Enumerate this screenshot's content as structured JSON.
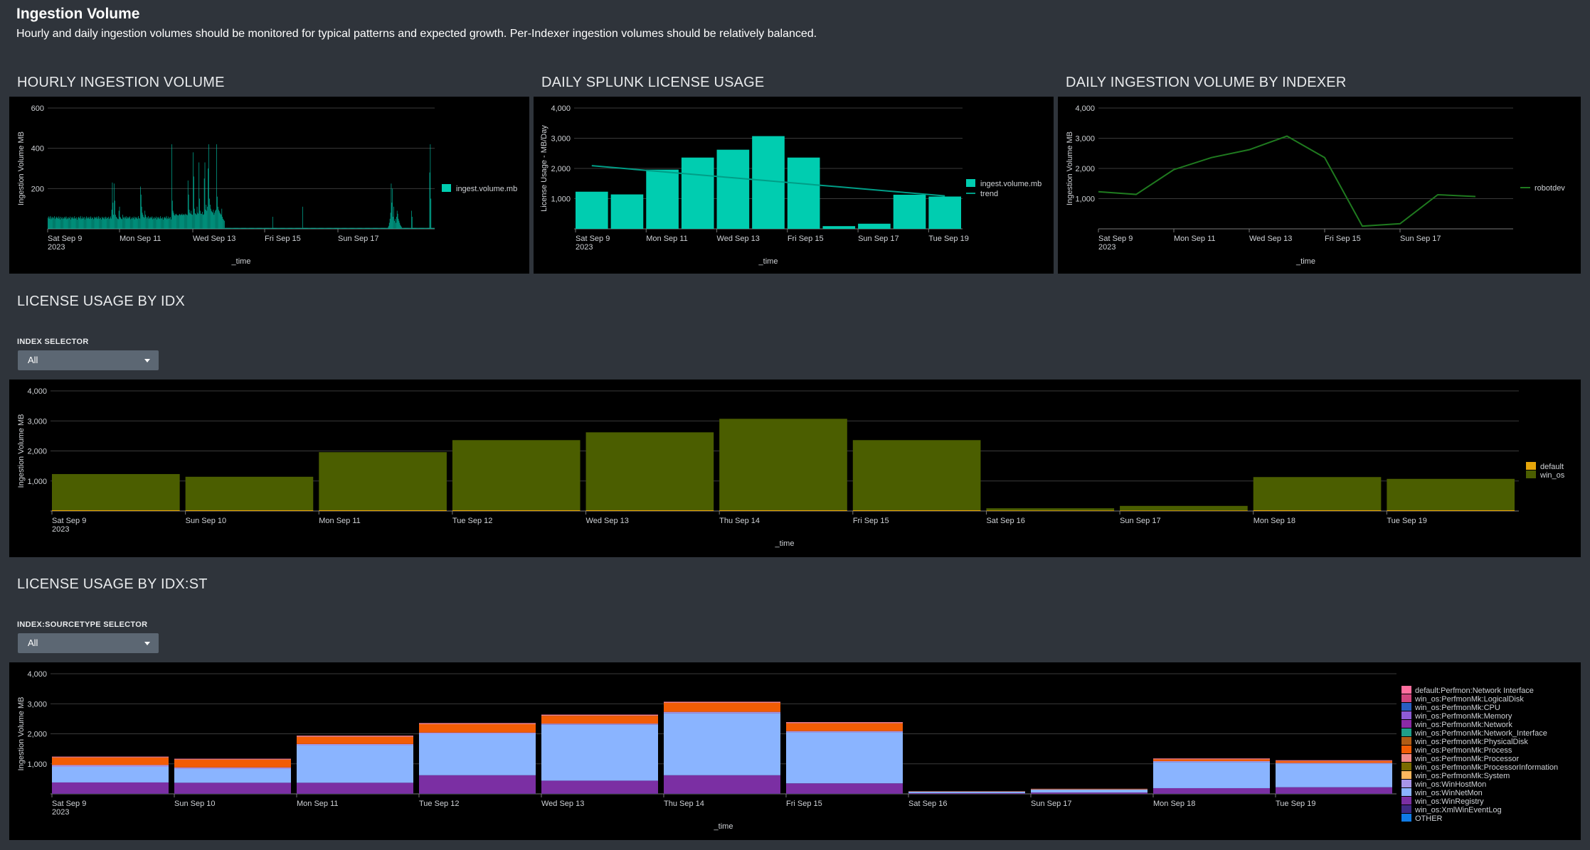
{
  "dashboard": {
    "title": "Ingestion Volume",
    "description": "Hourly and daily ingestion volumes should be monitored for typical patterns and expected growth. Per-Indexer ingestion volumes should be relatively balanced."
  },
  "colors": {
    "teal": "#00cdb0",
    "green_line": "#1f7a1f",
    "olive": "#4b5e00",
    "amber": "#e5a50a",
    "light_blue": "#8ab4ff",
    "purple": "#7b2fa3",
    "orange": "#f25c05"
  },
  "sections": {
    "hourly_title": "HOURLY INGESTION VOLUME",
    "daily_title": "DAILY SPLUNK LICENSE USAGE",
    "indexer_title": "DAILY INGESTION VOLUME BY INDEXER",
    "idx_title": "LICENSE USAGE BY IDX",
    "idxst_title": "LICENSE USAGE BY IDX:ST"
  },
  "inputs": {
    "index_selector": {
      "label": "INDEX SELECTOR",
      "value": "All"
    },
    "sourcetype_selector": {
      "label": "INDEX:SOURCETYPE SELECTOR",
      "value": "All"
    }
  },
  "charts": {
    "hourly": {
      "chart_data": {
        "type": "bar",
        "xlabel": "_time",
        "ylabel": "Ingestion Volume MB",
        "ylim": [
          0,
          600
        ],
        "yticks": [
          "200",
          "400",
          "600"
        ],
        "xticks": [
          "Sat Sep 9",
          "Mon Sep 11",
          "Wed Sep 13",
          "Fri Sep 15",
          "Sun Sep 17"
        ],
        "xtick_sub": "2023",
        "series": [
          {
            "name": "ingest.volume.mb",
            "values": [
              55,
              62,
              50,
              58,
              64,
              48,
              55,
              60,
              52,
              57,
              63,
              49,
              56,
              61,
              53,
              58,
              50,
              62,
              55,
              47,
              60,
              52,
              58,
              49,
              54,
              60,
              51,
              57,
              62,
              48,
              56,
              50,
              58,
              53,
              61,
              47,
              55,
              60,
              52,
              57,
              49,
              63,
              54,
              51,
              58,
              46,
              55,
              60,
              52,
              57,
              64,
              48,
              53,
              61,
              50,
              56,
              59,
              47,
              55,
              62,
              51,
              58,
              53,
              60,
              49,
              56,
              62,
              50,
              57,
              54,
              48,
              60,
              52,
              58,
              55,
              61,
              49,
              56,
              63,
              50,
              58,
              53,
              47,
              60,
              55,
              52,
              59,
              48,
              56,
              61,
              50,
              57,
              53,
              60,
              49,
              55,
              62,
              51,
              95,
              230,
              130,
              70,
              225,
              140,
              70,
              60,
              55,
              50,
              48,
              90,
              110,
              60,
              55,
              50,
              48,
              70,
              55,
              60,
              52,
              58,
              63,
              50,
              55,
              60,
              52,
              57,
              62,
              48,
              56,
              50,
              58,
              53,
              61,
              47,
              55,
              60,
              52,
              57,
              49,
              63,
              54,
              51,
              210,
              170,
              110,
              80,
              70,
              60,
              55,
              90,
              70,
              60,
              52,
              58,
              63,
              50,
              55,
              60,
              52,
              57,
              62,
              48,
              56,
              50,
              58,
              53,
              61,
              47,
              55,
              60,
              52,
              57,
              49,
              63,
              54,
              51,
              58,
              46,
              55,
              60,
              52,
              57,
              64,
              48,
              53,
              61,
              50,
              56,
              59,
              47,
              420,
              140,
              90,
              80,
              70,
              65,
              72,
              75,
              70,
              68,
              66,
              70,
              74,
              68,
              72,
              70,
              76,
              68,
              71,
              73,
              69,
              75,
              70,
              72,
              68,
              240,
              170,
              95,
              80,
              75,
              90,
              72,
              70,
              380,
              260,
              100,
              78,
              74,
              70,
              110,
              80,
              75,
              330,
              150,
              90,
              75,
              75,
              85,
              70,
              72,
              250,
              330,
              95,
              120,
              90,
              110,
              300,
              420,
              150,
              120,
              100,
              90,
              85,
              80,
              95,
              70,
              80,
              90,
              95,
              420,
              160,
              110,
              95,
              88,
              80,
              75,
              70,
              100,
              60,
              50,
              45,
              40,
              5,
              5,
              5,
              5,
              5,
              5,
              5,
              5,
              5,
              5,
              5,
              5,
              5,
              5,
              5,
              5,
              5,
              5,
              5,
              5,
              5,
              5,
              5,
              5,
              5,
              5,
              5,
              5,
              5,
              5,
              5,
              5,
              5,
              5,
              5,
              5,
              5,
              5,
              5,
              5,
              5,
              5,
              5,
              5,
              5,
              5,
              5,
              5,
              5,
              5,
              5,
              5,
              5,
              5,
              5,
              5,
              5,
              5,
              5,
              5,
              5,
              5,
              5,
              5,
              5,
              5,
              5,
              5,
              5,
              5,
              5,
              5,
              5,
              60,
              5,
              5,
              5,
              5,
              5,
              5,
              5,
              5,
              5,
              5,
              5,
              5,
              5,
              5,
              5,
              5,
              5,
              5,
              5,
              5,
              5,
              5,
              5,
              5,
              5,
              5,
              5,
              5,
              5,
              5,
              5,
              5,
              5,
              5,
              5,
              5,
              5,
              5,
              5,
              5,
              5,
              5,
              5,
              5,
              5,
              110,
              5,
              5,
              5,
              5,
              5,
              5,
              5,
              5,
              5,
              5,
              5,
              5,
              5,
              5,
              5,
              5,
              5,
              5,
              5,
              5,
              5,
              5,
              5,
              5,
              5,
              5,
              5,
              5,
              5,
              5,
              5,
              5,
              5,
              5,
              5,
              5,
              5,
              5,
              5,
              5,
              5,
              5,
              5,
              5,
              5,
              5,
              5,
              5,
              5,
              5,
              5,
              5,
              5,
              5,
              5,
              5,
              5,
              5,
              5,
              5,
              5,
              5,
              5,
              5,
              5,
              5,
              5,
              5,
              5,
              5,
              5,
              5,
              5,
              5,
              5,
              5,
              5,
              5,
              5,
              5,
              5,
              5,
              5,
              5,
              5,
              5,
              5,
              5,
              5,
              5,
              5,
              5,
              5,
              5,
              5,
              5,
              5,
              5,
              5,
              5,
              5,
              5,
              5,
              5,
              5,
              5,
              5,
              5,
              5,
              5,
              5,
              5,
              5,
              5,
              5,
              5,
              5,
              5,
              5,
              5,
              5,
              5,
              5,
              5,
              5,
              5,
              5,
              5,
              5,
              5,
              8,
              15,
              30,
              50,
              80,
              225,
              130,
              200,
              60,
              110,
              40,
              50,
              30,
              60,
              90,
              75,
              50,
              40,
              30,
              20,
              15,
              10,
              5,
              5,
              5,
              5,
              5,
              5,
              5,
              5,
              5,
              5,
              5,
              5,
              5,
              5,
              90,
              60,
              5,
              5,
              5,
              5,
              5,
              5,
              5,
              5,
              5,
              5,
              5,
              5,
              5,
              5,
              5,
              5,
              5,
              5,
              5,
              5,
              5,
              5,
              5,
              5,
              5,
              5,
              280,
              420,
              150,
              5,
              5,
              5,
              5,
              5
            ]
          }
        ],
        "legend": "right"
      }
    },
    "daily": {
      "chart_data": {
        "type": "bar",
        "xlabel": "_time",
        "ylabel": "License Usage - MB/Day",
        "ylim": [
          0,
          4000
        ],
        "yticks": [
          "1,000",
          "2,000",
          "3,000",
          "4,000"
        ],
        "categories": [
          "Sat Sep 9",
          "Sun Sep 10",
          "Mon Sep 11",
          "Tue Sep 12",
          "Wed Sep 13",
          "Thu Sep 14",
          "Fri Sep 15",
          "Sat Sep 16",
          "Sun Sep 17",
          "Mon Sep 18",
          "Tue Sep 19"
        ],
        "xticks": [
          "Sat Sep 9",
          "Mon Sep 11",
          "Wed Sep 13",
          "Fri Sep 15",
          "Sun Sep 17",
          "Tue Sep 19"
        ],
        "xtick_sub": "2023",
        "series": [
          {
            "name": "ingest.volume.mb",
            "type": "bar",
            "values": [
              1230,
              1140,
              1960,
              2360,
              2620,
              3070,
              2360,
              90,
              170,
              1130,
              1070
            ]
          },
          {
            "name": "trend",
            "type": "line",
            "values": [
              2090,
              1990,
              1890,
              1790,
              1690,
              1590,
              1490,
              1390,
              1290,
              1190,
              1090
            ]
          }
        ],
        "legend": "right"
      }
    },
    "indexer": {
      "chart_data": {
        "type": "line",
        "xlabel": "_time",
        "ylabel": "Ingestion Volume MB",
        "ylim": [
          0,
          4000
        ],
        "yticks": [
          "1,000",
          "2,000",
          "3,000",
          "4,000"
        ],
        "categories": [
          "Sat Sep 9",
          "Sun Sep 10",
          "Mon Sep 11",
          "Tue Sep 12",
          "Wed Sep 13",
          "Thu Sep 14",
          "Fri Sep 15",
          "Sat Sep 16",
          "Sun Sep 17",
          "Mon Sep 18",
          "Tue Sep 19"
        ],
        "xticks": [
          "Sat Sep 9",
          "Mon Sep 11",
          "Wed Sep 13",
          "Fri Sep 15",
          "Sun Sep 17"
        ],
        "xtick_sub": "2023",
        "series": [
          {
            "name": "robotdev",
            "values": [
              1230,
              1140,
              1960,
              2360,
              2620,
              3070,
              2360,
              90,
              170,
              1130,
              1070
            ]
          }
        ],
        "legend": "right"
      }
    },
    "idx": {
      "chart_data": {
        "type": "bar",
        "stacked": true,
        "xlabel": "_time",
        "ylabel": "Ingestion Volume MB",
        "ylim": [
          0,
          4000
        ],
        "yticks": [
          "1,000",
          "2,000",
          "3,000",
          "4,000"
        ],
        "categories": [
          "Sat Sep 9",
          "Sun Sep 10",
          "Mon Sep 11",
          "Tue Sep 12",
          "Wed Sep 13",
          "Thu Sep 14",
          "Fri Sep 15",
          "Sat Sep 16",
          "Sun Sep 17",
          "Mon Sep 18",
          "Tue Sep 19"
        ],
        "xtick_sub": "2023",
        "series": [
          {
            "name": "default",
            "values": [
              30,
              30,
              30,
              30,
              30,
              30,
              30,
              20,
              20,
              30,
              30
            ]
          },
          {
            "name": "win_os",
            "values": [
              1200,
              1110,
              1930,
              2330,
              2590,
              3040,
              2330,
              70,
              150,
              1100,
              1040
            ]
          }
        ],
        "legend": "right"
      }
    },
    "idxst": {
      "chart_data": {
        "type": "bar",
        "stacked": true,
        "xlabel": "_time",
        "ylabel": "Ingestion Volume MB",
        "ylim": [
          0,
          4000
        ],
        "yticks": [
          "1,000",
          "2,000",
          "3,000",
          "4,000"
        ],
        "categories": [
          "Sat Sep 9",
          "Sun Sep 10",
          "Mon Sep 11",
          "Tue Sep 12",
          "Wed Sep 13",
          "Thu Sep 14",
          "Fri Sep 15",
          "Sat Sep 16",
          "Sun Sep 17",
          "Mon Sep 18",
          "Tue Sep 19"
        ],
        "xtick_sub": "2023",
        "legend_items": [
          "default:Perfmon:Network Interface",
          "win_os:PerfmonMk:LogicalDisk",
          "win_os:PerfmonMk:CPU",
          "win_os:PerfmonMk:Memory",
          "win_os:PerfmonMk:Network",
          "win_os:PerfmonMk:Network_Interface",
          "win_os:PerfmonMk:PhysicalDisk",
          "win_os:PerfmonMk:Process",
          "win_os:PerfmonMk:Processor",
          "win_os:PerfmonMk:ProcessorInformation",
          "win_os:PerfmonMk:System",
          "win_os:WinHostMon",
          "win_os:WinNetMon",
          "win_os:WinRegistry",
          "win_os:XmlWinEventLog",
          "OTHER"
        ],
        "legend_colors": [
          "#ff6f9f",
          "#d1467e",
          "#2a5ec2",
          "#8d5bd6",
          "#8b2aa6",
          "#1f9f89",
          "#b05c15",
          "#f25c05",
          "#f08a8a",
          "#7a6b00",
          "#ffb75e",
          "#a895e8",
          "#8ab4ff",
          "#7b2fa3",
          "#3f2b86",
          "#0f7be6"
        ],
        "series": [
          {
            "name": "win_os:XmlWinEventLog",
            "values": [
              10,
              10,
              10,
              10,
              10,
              10,
              10,
              5,
              5,
              10,
              10
            ]
          },
          {
            "name": "win_os:WinRegistry",
            "values": [
              370,
              360,
              360,
              610,
              430,
              610,
              340,
              20,
              40,
              180,
              210
            ]
          },
          {
            "name": "win_os:WinNetMon",
            "values": [
              520,
              460,
              1250,
              1380,
              1860,
              2060,
              1700,
              50,
              100,
              870,
              790
            ]
          },
          {
            "name": "win_os:WinHostMon",
            "values": [
              60,
              50,
              40,
              40,
              40,
              50,
              40,
              5,
              5,
              30,
              20
            ]
          },
          {
            "name": "win_os:PerfmonMk:Process",
            "values": [
              250,
              260,
              240,
              280,
              260,
              300,
              260,
              10,
              15,
              60,
              60
            ]
          },
          {
            "name": "win_os:PerfmonMk:Processor",
            "values": [
              20,
              20,
              30,
              30,
              30,
              30,
              30,
              0,
              5,
              20,
              20
            ]
          },
          {
            "name": "default:Perfmon:Network Interface",
            "values": [
              10,
              10,
              10,
              10,
              10,
              10,
              10,
              0,
              0,
              10,
              10
            ]
          }
        ],
        "legend": "right"
      }
    }
  }
}
